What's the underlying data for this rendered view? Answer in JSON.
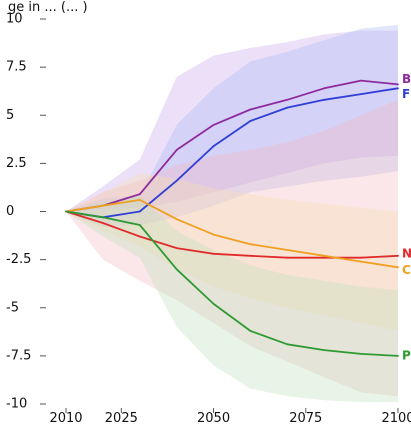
{
  "chart_data": {
    "type": "line",
    "title": "ge in ... (... )",
    "xlabel": "",
    "ylabel": "",
    "xlim": [
      2010,
      2100
    ],
    "ylim": [
      -10,
      10
    ],
    "x_ticks": [
      2010,
      2025,
      2050,
      2075,
      2100
    ],
    "y_ticks": [
      10,
      7.5,
      5,
      2.5,
      0,
      -2.5,
      -5,
      -7.5,
      -10
    ],
    "y_tick_labels": [
      "10",
      "7.5",
      "5",
      "2.5",
      "0",
      "-2.5",
      "-5",
      "-7.5",
      "-10"
    ],
    "grid": false,
    "x": [
      2010,
      2020,
      2030,
      2040,
      2050,
      2060,
      2070,
      2080,
      2090,
      2100
    ],
    "series": [
      {
        "name": "B",
        "color": "#8e2a9e",
        "band_color": "#c9a6ef",
        "values": [
          0,
          0.3,
          0.9,
          3.2,
          4.5,
          5.3,
          5.8,
          6.4,
          6.8,
          6.6
        ],
        "lower": [
          0,
          0.1,
          0.2,
          0.5,
          1.0,
          1.5,
          2.0,
          2.5,
          2.8,
          2.9
        ],
        "upper": [
          0,
          1.3,
          2.7,
          7.0,
          8.1,
          8.5,
          8.8,
          9.2,
          9.4,
          9.4
        ]
      },
      {
        "name": "F",
        "color": "#2f3fd6",
        "band_color": "#a9b8f4",
        "values": [
          0,
          -0.3,
          0,
          1.6,
          3.4,
          4.7,
          5.4,
          5.8,
          6.1,
          6.4
        ],
        "lower": [
          0,
          -0.8,
          -0.7,
          -0.3,
          0.3,
          1.0,
          1.3,
          1.6,
          1.8,
          2.1
        ],
        "upper": [
          0,
          0.7,
          0.8,
          4.5,
          6.4,
          7.8,
          8.3,
          8.9,
          9.5,
          9.7
        ]
      },
      {
        "name": "N",
        "color": "#e02b2b",
        "band_color": "#f3b7c0",
        "values": [
          0,
          -0.6,
          -1.3,
          -1.9,
          -2.2,
          -2.3,
          -2.4,
          -2.4,
          -2.4,
          -2.3
        ],
        "lower": [
          0,
          -2.5,
          -3.6,
          -4.6,
          -5.8,
          -7.0,
          -7.8,
          -8.6,
          -9.4,
          -9.6
        ],
        "upper": [
          0,
          1.0,
          1.6,
          2.4,
          2.9,
          3.2,
          3.6,
          4.2,
          5.0,
          5.8
        ]
      },
      {
        "name": "C",
        "color": "#f0a020",
        "band_color": "#f7ddb2",
        "values": [
          0,
          0.3,
          0.6,
          -0.4,
          -1.2,
          -1.7,
          -2.0,
          -2.3,
          -2.6,
          -2.9
        ],
        "lower": [
          0,
          -1.0,
          -1.8,
          -3.0,
          -3.9,
          -4.5,
          -5.0,
          -5.4,
          -5.8,
          -6.2
        ],
        "upper": [
          0,
          1.0,
          2.0,
          1.7,
          1.2,
          0.9,
          0.6,
          0.4,
          0.2,
          0.0
        ]
      },
      {
        "name": "P",
        "color": "#2e9a32",
        "band_color": "#bce0bb",
        "values": [
          0,
          -0.3,
          -0.7,
          -3.0,
          -4.8,
          -6.2,
          -6.9,
          -7.2,
          -7.4,
          -7.5
        ],
        "lower": [
          0,
          -1.3,
          -2.4,
          -6.0,
          -8.0,
          -9.2,
          -9.6,
          -9.8,
          -9.9,
          -9.9
        ],
        "upper": [
          0,
          0.5,
          0.8,
          -1.0,
          -2.0,
          -2.8,
          -3.3,
          -3.6,
          -3.9,
          -4.1
        ]
      }
    ]
  }
}
